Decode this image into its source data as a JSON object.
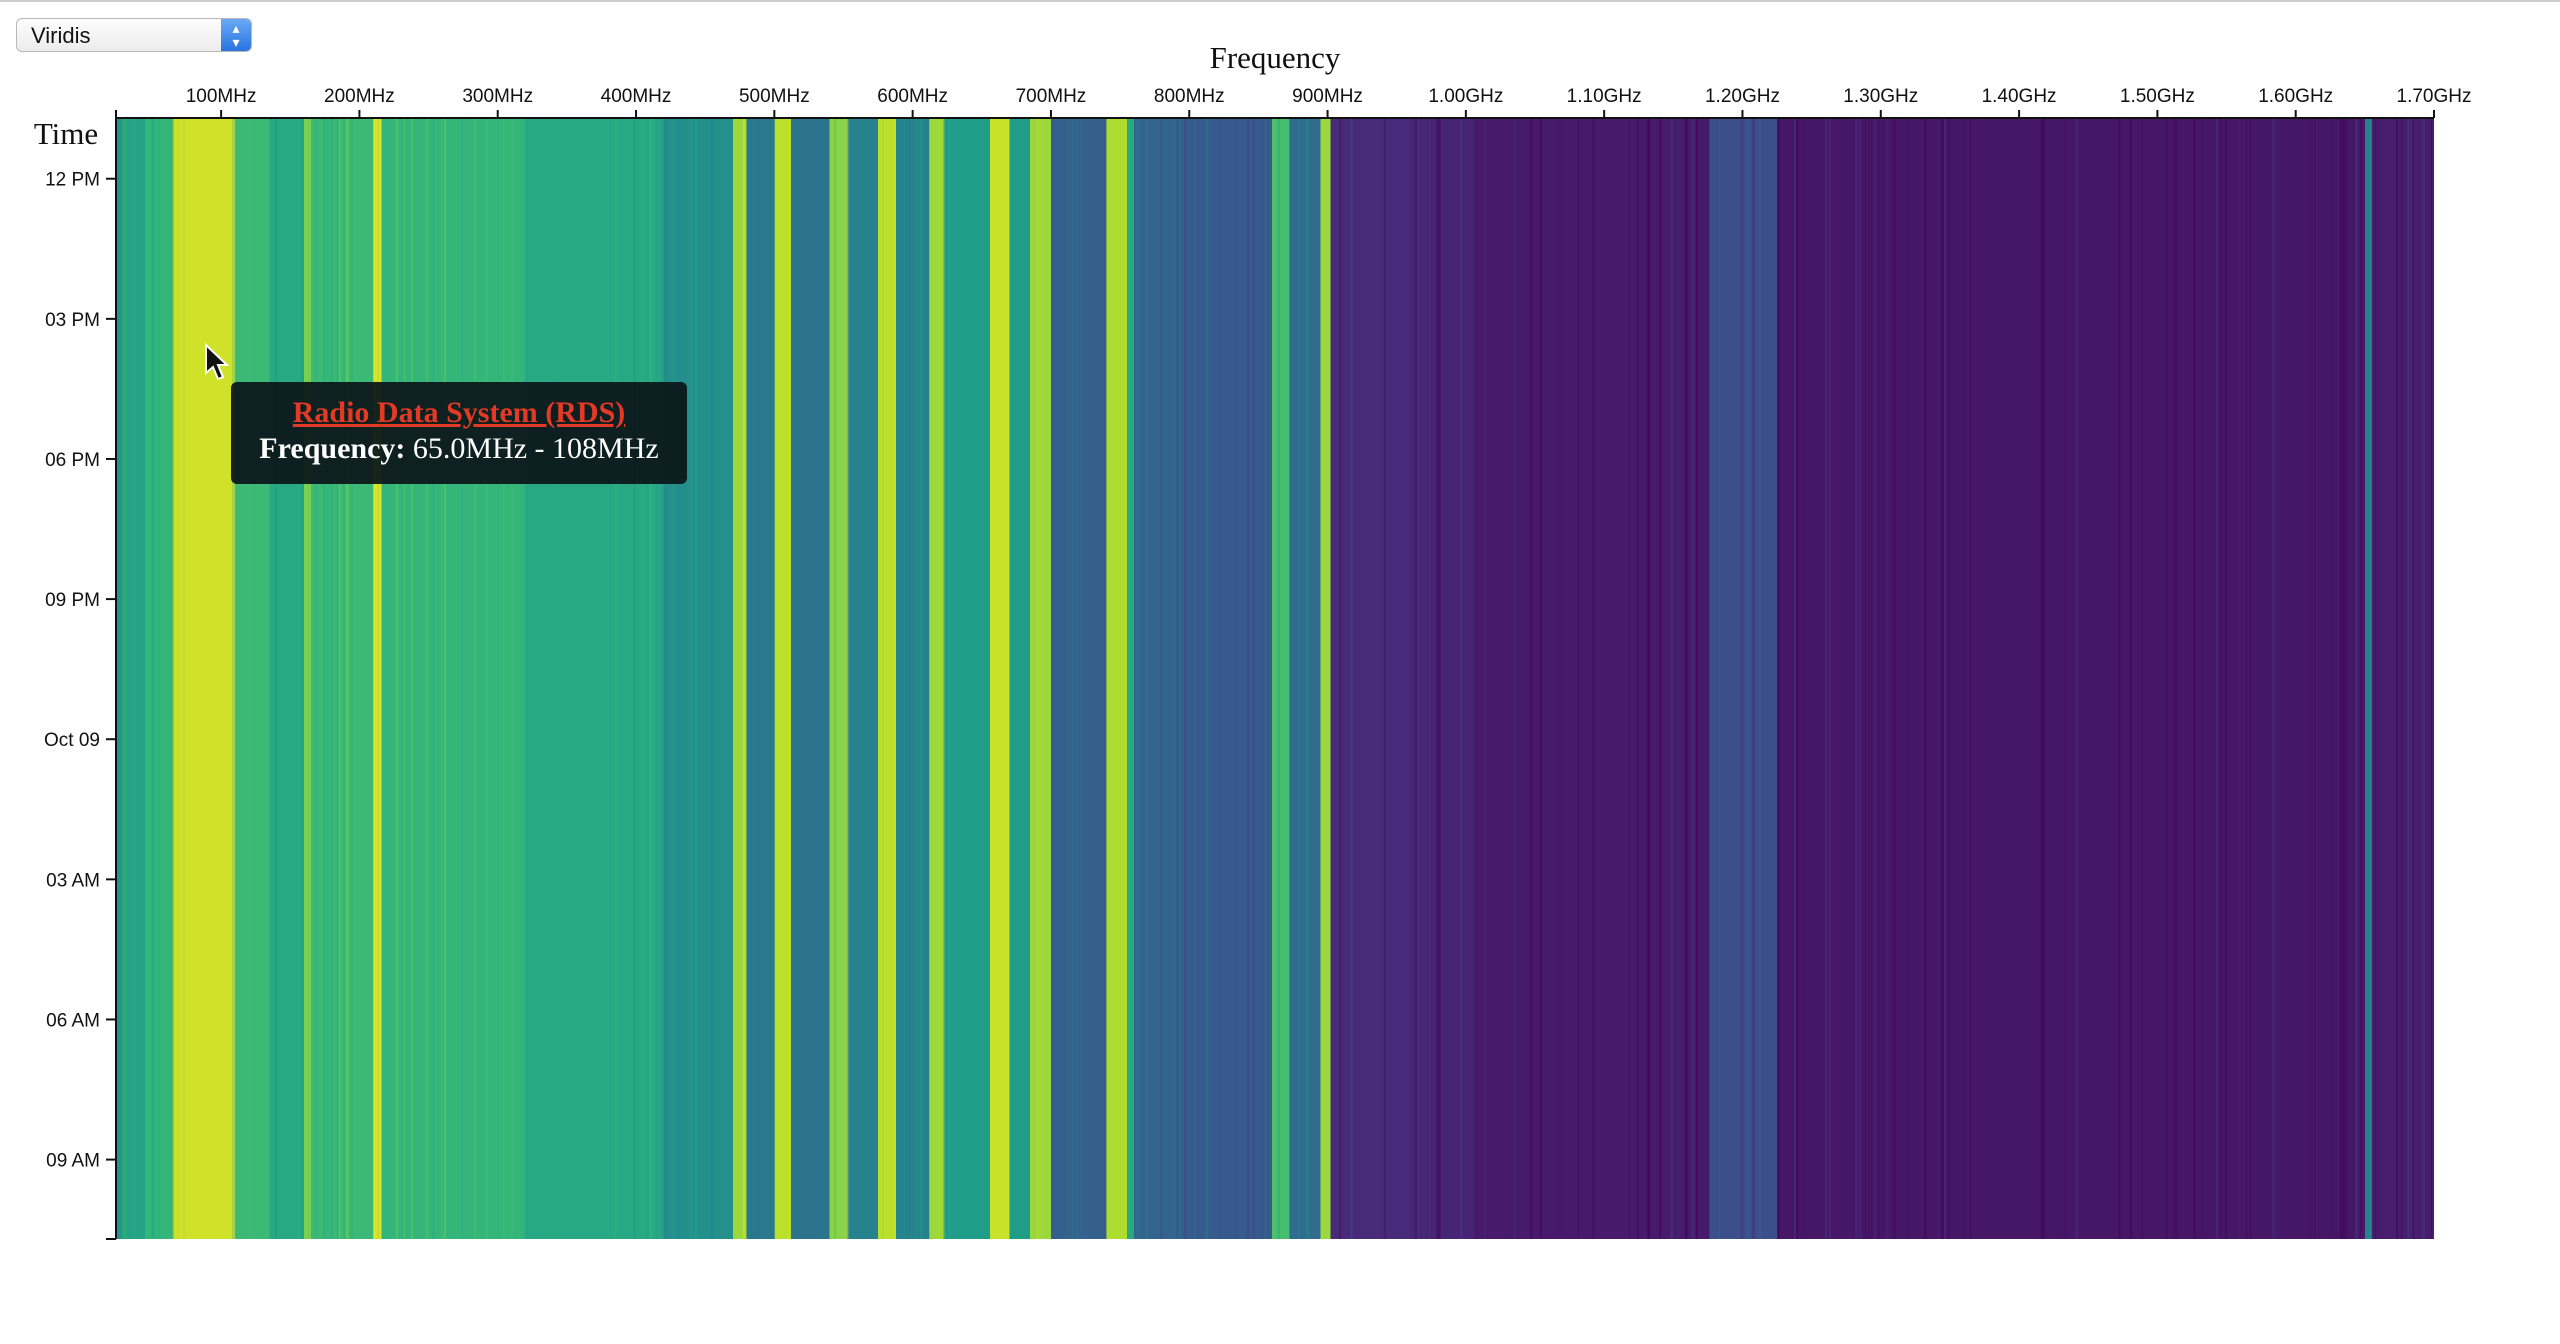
{
  "palette_select": {
    "value": "Viridis",
    "arrows_icon": "up-down-chevron-icon"
  },
  "tooltip": {
    "title": "Radio Data System (RDS)",
    "key": "Frequency:",
    "value": "65.0MHz - 108MHz"
  },
  "cursor": {
    "icon": "mouse-pointer-icon"
  },
  "chart_data": {
    "type": "heatmap",
    "title": "",
    "xlabel": "Frequency",
    "ylabel": "Time",
    "colormap": "viridis",
    "x_unit": "MHz",
    "xlim": [
      24,
      1700
    ],
    "x_ticks": [
      {
        "value": 100,
        "label": "100MHz"
      },
      {
        "value": 200,
        "label": "200MHz"
      },
      {
        "value": 300,
        "label": "300MHz"
      },
      {
        "value": 400,
        "label": "400MHz"
      },
      {
        "value": 500,
        "label": "500MHz"
      },
      {
        "value": 600,
        "label": "600MHz"
      },
      {
        "value": 700,
        "label": "700MHz"
      },
      {
        "value": 800,
        "label": "800MHz"
      },
      {
        "value": 900,
        "label": "900MHz"
      },
      {
        "value": 1000,
        "label": "1.00GHz"
      },
      {
        "value": 1100,
        "label": "1.10GHz"
      },
      {
        "value": 1200,
        "label": "1.20GHz"
      },
      {
        "value": 1300,
        "label": "1.30GHz"
      },
      {
        "value": 1400,
        "label": "1.40GHz"
      },
      {
        "value": 1500,
        "label": "1.50GHz"
      },
      {
        "value": 1600,
        "label": "1.60GHz"
      },
      {
        "value": 1700,
        "label": "1.70GHz"
      }
    ],
    "ylim_hours": [
      10.7,
      34.7
    ],
    "y_ticks": [
      {
        "value": 12,
        "label": "12 PM"
      },
      {
        "value": 15,
        "label": "03 PM"
      },
      {
        "value": 18,
        "label": "06 PM"
      },
      {
        "value": 21,
        "label": "09 PM"
      },
      {
        "value": 24,
        "label": "Oct 09"
      },
      {
        "value": 27,
        "label": "03 AM"
      },
      {
        "value": 30,
        "label": "06 AM"
      },
      {
        "value": 33,
        "label": "09 AM"
      }
    ],
    "intensity_bands": [
      {
        "from": 24,
        "to": 28,
        "level": 0.52
      },
      {
        "from": 28,
        "to": 45,
        "level": 0.58
      },
      {
        "from": 45,
        "to": 65,
        "level": 0.66
      },
      {
        "from": 65,
        "to": 108,
        "level": 0.93
      },
      {
        "from": 108,
        "to": 135,
        "level": 0.68
      },
      {
        "from": 135,
        "to": 160,
        "level": 0.6
      },
      {
        "from": 160,
        "to": 165,
        "level": 0.8
      },
      {
        "from": 165,
        "to": 210,
        "level": 0.68
      },
      {
        "from": 210,
        "to": 216,
        "level": 0.95
      },
      {
        "from": 216,
        "to": 320,
        "level": 0.66
      },
      {
        "from": 320,
        "to": 420,
        "level": 0.6
      },
      {
        "from": 420,
        "to": 470,
        "level": 0.5
      },
      {
        "from": 470,
        "to": 480,
        "level": 0.85
      },
      {
        "from": 480,
        "to": 500,
        "level": 0.4
      },
      {
        "from": 500,
        "to": 512,
        "level": 0.9
      },
      {
        "from": 512,
        "to": 540,
        "level": 0.38
      },
      {
        "from": 540,
        "to": 552,
        "level": 0.82
      },
      {
        "from": 552,
        "to": 575,
        "level": 0.45
      },
      {
        "from": 575,
        "to": 588,
        "level": 0.9
      },
      {
        "from": 588,
        "to": 612,
        "level": 0.45
      },
      {
        "from": 612,
        "to": 622,
        "level": 0.85
      },
      {
        "from": 622,
        "to": 656,
        "level": 0.55
      },
      {
        "from": 656,
        "to": 670,
        "level": 0.92
      },
      {
        "from": 670,
        "to": 685,
        "level": 0.55
      },
      {
        "from": 685,
        "to": 700,
        "level": 0.85
      },
      {
        "from": 700,
        "to": 740,
        "level": 0.3
      },
      {
        "from": 740,
        "to": 755,
        "level": 0.88
      },
      {
        "from": 755,
        "to": 760,
        "level": 0.6
      },
      {
        "from": 760,
        "to": 790,
        "level": 0.32
      },
      {
        "from": 790,
        "to": 860,
        "level": 0.28
      },
      {
        "from": 860,
        "to": 872,
        "level": 0.7
      },
      {
        "from": 872,
        "to": 895,
        "level": 0.35
      },
      {
        "from": 895,
        "to": 902,
        "level": 0.85
      },
      {
        "from": 902,
        "to": 960,
        "level": 0.12
      },
      {
        "from": 960,
        "to": 1005,
        "level": 0.1
      },
      {
        "from": 1005,
        "to": 1175,
        "level": 0.07
      },
      {
        "from": 1175,
        "to": 1225,
        "level": 0.24
      },
      {
        "from": 1225,
        "to": 1650,
        "level": 0.06
      },
      {
        "from": 1650,
        "to": 1655,
        "level": 0.45
      },
      {
        "from": 1655,
        "to": 1700,
        "level": 0.08
      }
    ]
  }
}
